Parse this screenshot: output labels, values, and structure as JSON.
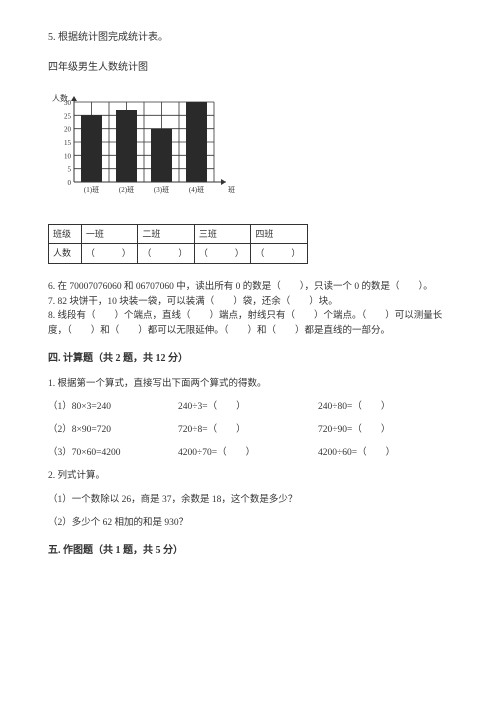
{
  "q5": {
    "title": "5. 根据统计图完成统计表。",
    "subtitle": "四年级男生人数统计图",
    "chart": {
      "type": "bar",
      "y_label_top": "人数",
      "y_ticks": [
        "30",
        "25",
        "20",
        "15",
        "10",
        "5",
        "0"
      ],
      "x_cats": [
        "(1)班",
        "(2)班",
        "(3)班",
        "(4)班"
      ],
      "x_tail": "班",
      "bars": [
        25,
        27,
        20,
        30
      ],
      "y_max": 30,
      "bar_fill": "#2a2a2a",
      "border_color": "#333333",
      "grid_color": "#333333"
    },
    "table": {
      "r1": [
        "班级",
        "一班",
        "二班",
        "三班",
        "四班"
      ],
      "r2": [
        "人数",
        "（　　　）",
        "（　　　）",
        "（　　　）",
        "（　　　）"
      ]
    }
  },
  "q6": "6. 在 70007076060 和 06707060 中，读出所有 0 的数是（　　），只读一个 0 的数是（　　）。",
  "q7": "7. 82 块饼干，10 块装一袋，可以装满（　　）袋，还余（　　）块。",
  "q8": "8. 线段有（　　）个端点，直线（　　）端点，射线只有（　　）个端点。（　　）可以测量长度，（　　）和（　　）都可以无限延伸。（　　）和（　　）都是直线的一部分。",
  "sec4": {
    "head": "四. 计算题（共 2 题，共 12 分）",
    "q1": "1. 根据第一个算式，直接写出下面两个算式的得数。",
    "rows": [
      {
        "a": "（1）80×3=240",
        "b": "240÷3=（　　）",
        "c": "240÷80=（　　）"
      },
      {
        "a": "（2）8×90=720",
        "b": "720÷8=（　　）",
        "c": "720÷90=（　　）"
      },
      {
        "a": "（3）70×60=4200",
        "b": "4200÷70=（　　）",
        "c": "4200÷60=（　　）"
      }
    ],
    "q2": "2. 列式计算。",
    "q2_1": "（1）一个数除以 26，商是 37，余数是 18，这个数是多少？",
    "q2_2": "（2）多少个 62 相加的和是 930？"
  },
  "sec5": {
    "head": "五. 作图题（共 1 题，共 5 分）"
  }
}
